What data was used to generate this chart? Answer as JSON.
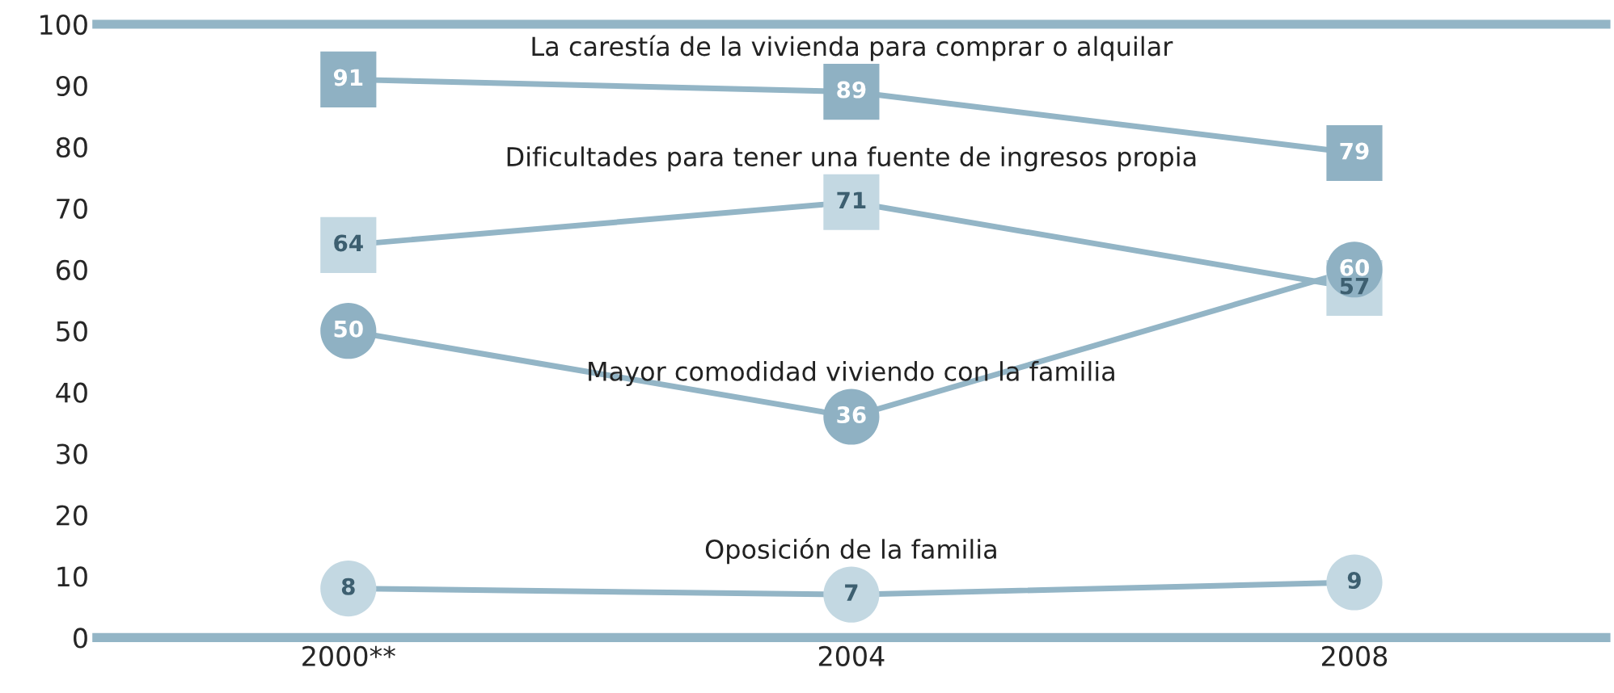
{
  "chart_data": {
    "type": "line",
    "categories": [
      "2000**",
      "2004",
      "2008"
    ],
    "series": [
      {
        "name": "La carestía de la vivienda para comprar o alquilar",
        "color": "#8fb1c3",
        "values": [
          91,
          89,
          79
        ],
        "marker": "square"
      },
      {
        "name": "Dificultades para tener una fuente de ingresos propia",
        "color": "#c3d8e2",
        "values": [
          64,
          71,
          57
        ],
        "marker": "square"
      },
      {
        "name": "Mayor comodidad viviendo con la familia",
        "color": "#8fb1c3",
        "values": [
          50,
          36,
          60
        ],
        "marker": "circle"
      },
      {
        "name": "Oposición de la familia",
        "color": "#c3d8e2",
        "values": [
          8,
          7,
          9
        ],
        "marker": "circle"
      }
    ],
    "ylim": [
      0,
      100
    ],
    "yticks": [
      0,
      10,
      20,
      30,
      40,
      50,
      60,
      70,
      80,
      90,
      100
    ],
    "data_labels": true,
    "grid": false,
    "legend": false,
    "line_style": "solid"
  }
}
